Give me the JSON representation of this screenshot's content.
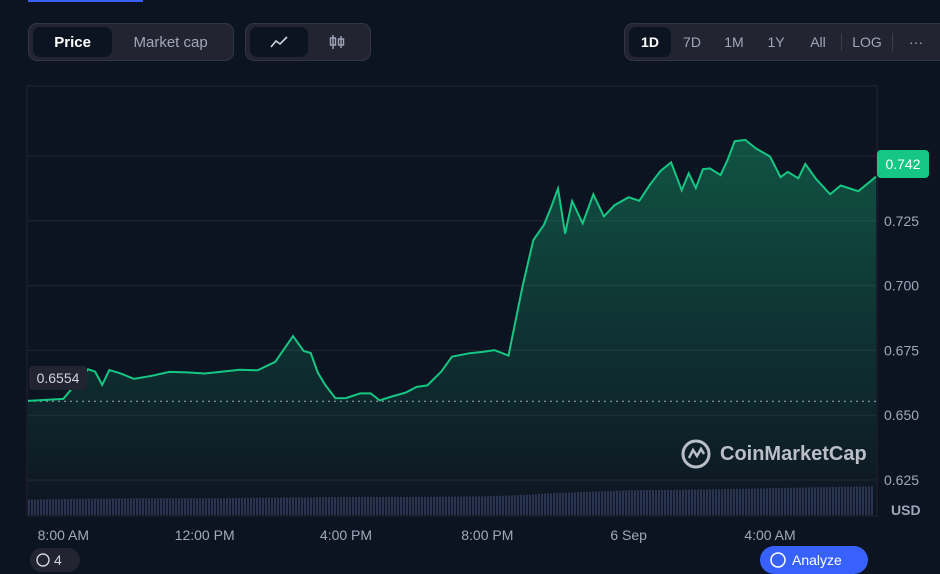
{
  "tabs": {
    "metric": [
      {
        "label": "Price",
        "active": true
      },
      {
        "label": "Market cap",
        "active": false
      }
    ],
    "chart_type": [
      {
        "icon": "line-chart-icon",
        "active": true
      },
      {
        "icon": "candlestick-icon",
        "active": false
      }
    ],
    "ranges": [
      {
        "label": "1D",
        "active": true
      },
      {
        "label": "7D",
        "active": false
      },
      {
        "label": "1M",
        "active": false
      },
      {
        "label": "1Y",
        "active": false
      },
      {
        "label": "All",
        "active": false
      }
    ],
    "log_label": "LOG",
    "more_label": "···"
  },
  "badges": {
    "current_price": "0.742",
    "open_price": "0.6554"
  },
  "watermark": "CoinMarketCap",
  "currency": "USD",
  "bottom": {
    "left_label": "4",
    "right_label": "Analyze"
  },
  "colors": {
    "up": "#16c784",
    "down": "#ea3943",
    "background": "#0d1421",
    "volume": "#2a3350"
  },
  "chart_data": {
    "type": "area",
    "y_ticks": [
      "0.625",
      "0.650",
      "0.675",
      "0.700",
      "0.725",
      "0.750"
    ],
    "y_tick_values": [
      0.625,
      0.65,
      0.675,
      0.7,
      0.725,
      0.75
    ],
    "x_ticks": [
      "8:00 AM",
      "12:00 PM",
      "4:00 PM",
      "8:00 PM",
      "6 Sep",
      "4:00 AM"
    ],
    "x_tick_hours": [
      1,
      5,
      9,
      13,
      17,
      21
    ],
    "x_range_hours": [
      0,
      24
    ],
    "ylim": [
      0.6115,
      0.7766
    ],
    "baseline": 0.6554,
    "grid": true,
    "series": [
      {
        "hours": [
          0,
          1,
          1.5,
          1.7,
          1.9,
          2.1,
          2.3,
          2.6,
          3.0,
          3.5,
          4.0,
          4.5,
          5.0,
          5.5,
          6.0,
          6.5,
          7.0,
          7.5,
          7.8,
          8.0,
          8.2,
          8.4,
          8.7,
          9.0,
          9.4,
          9.7,
          9.95,
          10.3,
          10.7,
          11.0,
          11.3,
          11.7,
          12.0,
          12.5,
          12.9,
          13.2,
          13.6,
          14.0,
          14.3,
          14.6,
          14.8,
          15.0,
          15.2,
          15.4,
          15.7,
          16.0,
          16.3,
          16.6,
          17.0,
          17.3,
          17.6,
          17.9,
          18.2,
          18.5,
          18.7,
          18.9,
          19.1,
          19.3,
          19.6,
          19.8,
          20.0,
          20.3,
          20.6,
          21.0,
          21.3,
          21.5,
          21.8,
          22.0,
          22.3,
          22.7,
          23.0,
          23.5,
          24.0
        ],
        "values": [
          0.6555,
          0.6563,
          0.6645,
          0.6677,
          0.6668,
          0.6617,
          0.6674,
          0.6662,
          0.664,
          0.6652,
          0.6667,
          0.6665,
          0.6661,
          0.6668,
          0.6675,
          0.6673,
          0.6706,
          0.6805,
          0.6748,
          0.674,
          0.6665,
          0.6619,
          0.6565,
          0.6566,
          0.6584,
          0.6584,
          0.6557,
          0.6572,
          0.6588,
          0.6609,
          0.6615,
          0.6669,
          0.6726,
          0.6739,
          0.6745,
          0.6751,
          0.673,
          0.7,
          0.7175,
          0.7234,
          0.73,
          0.7374,
          0.72,
          0.7326,
          0.724,
          0.7352,
          0.7267,
          0.731,
          0.7341,
          0.7327,
          0.7389,
          0.7442,
          0.7475,
          0.7368,
          0.7433,
          0.7376,
          0.7449,
          0.7452,
          0.7426,
          0.7485,
          0.7557,
          0.7562,
          0.7529,
          0.7498,
          0.7418,
          0.7439,
          0.7414,
          0.7469,
          0.7412,
          0.7352,
          0.7386,
          0.7364,
          0.742
        ]
      }
    ],
    "volume": {
      "hours": [
        0,
        1,
        3,
        5,
        7,
        9,
        11,
        13,
        14,
        15,
        16,
        17,
        19,
        21,
        23,
        24
      ],
      "values": [
        0.23,
        0.24,
        0.25,
        0.25,
        0.26,
        0.27,
        0.27,
        0.28,
        0.3,
        0.33,
        0.35,
        0.37,
        0.38,
        0.4,
        0.42,
        0.43
      ]
    }
  }
}
